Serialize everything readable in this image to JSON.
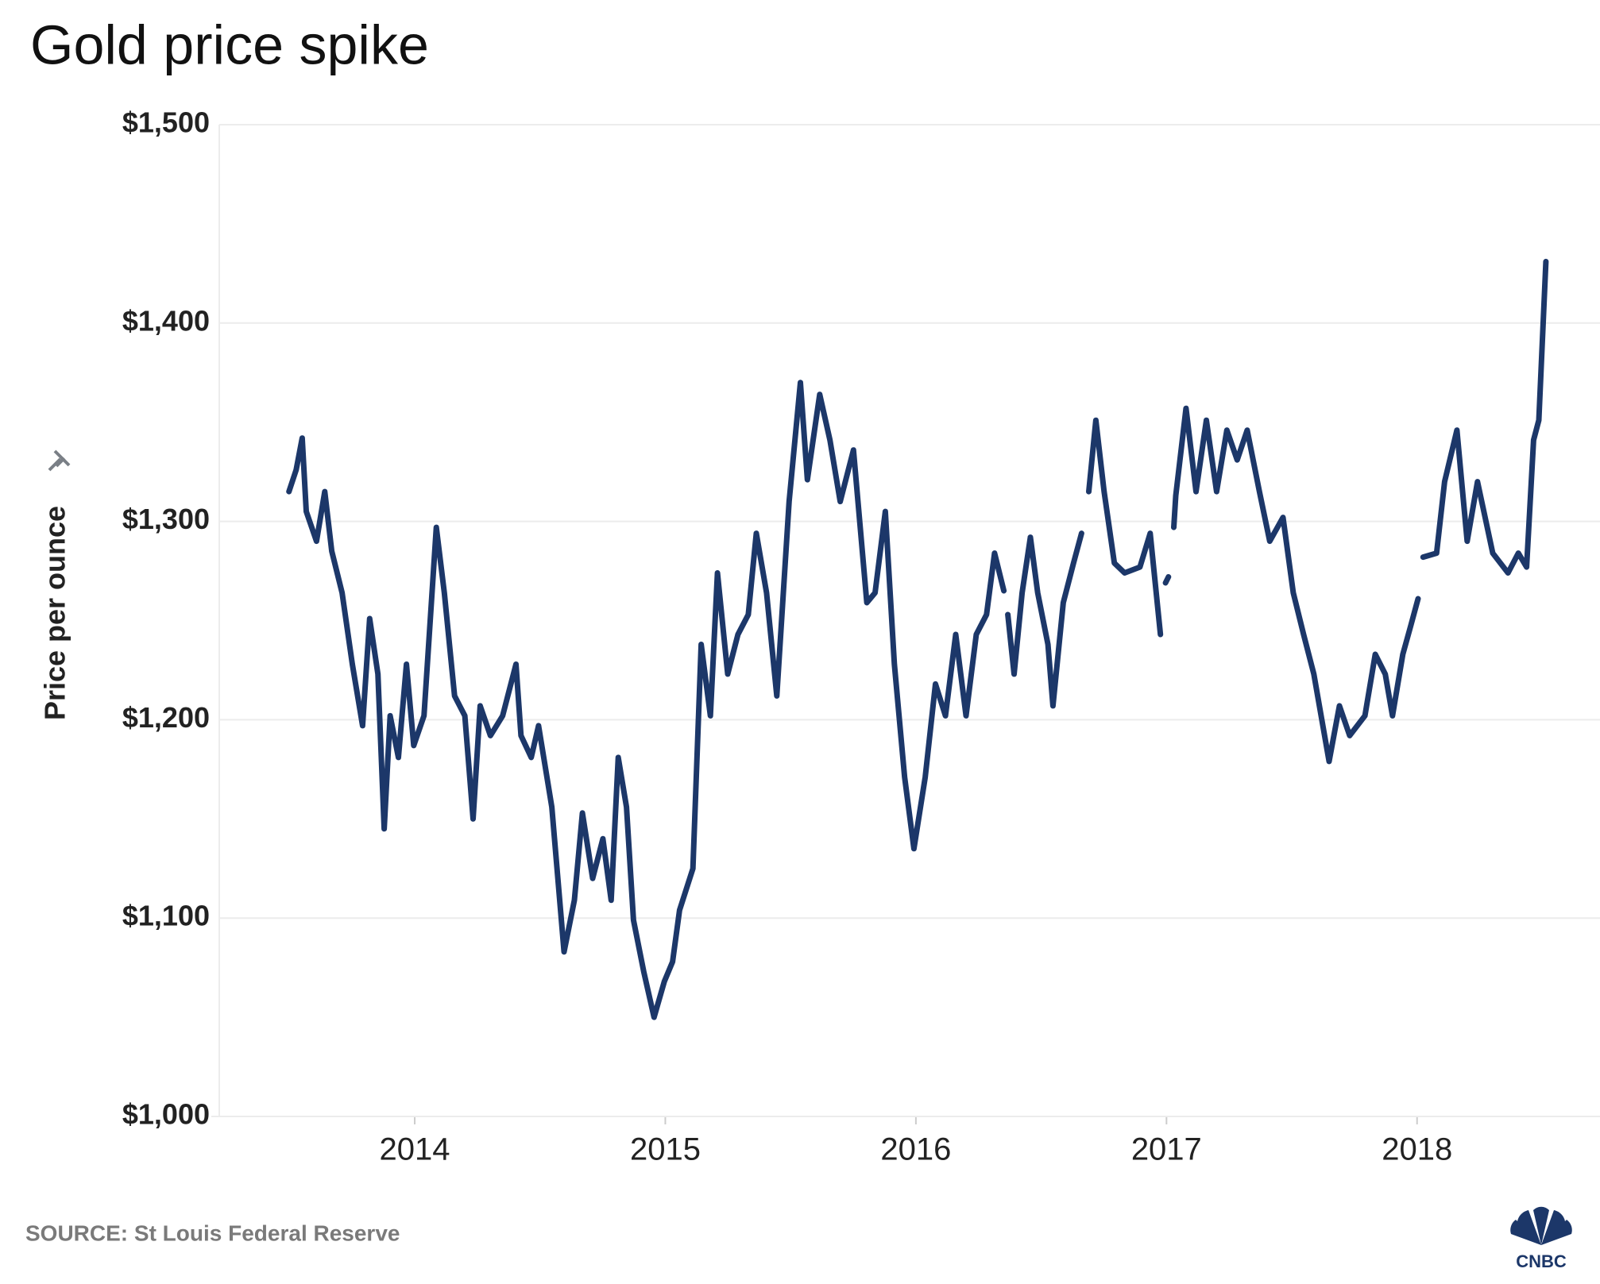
{
  "chart_data": {
    "type": "line",
    "title": "Gold price spike",
    "y_label": "Price per ounce",
    "source": "SOURCE: St Louis Federal Reserve",
    "logo": "CNBC",
    "xlim": [
      2013.22,
      2018.73
    ],
    "xticks": [
      2014,
      2015,
      2016,
      2017,
      2018
    ],
    "ylim": [
      1000,
      1500
    ],
    "yticks": [
      {
        "value": 1000,
        "label": "$1,000"
      },
      {
        "value": 1100,
        "label": "$1,100"
      },
      {
        "value": 1200,
        "label": "$1,200"
      },
      {
        "value": 1300,
        "label": "$1,300"
      },
      {
        "value": 1400,
        "label": "$1,400"
      },
      {
        "value": 1500,
        "label": "$1,500"
      }
    ],
    "grid": true,
    "color": "#1c3769",
    "x": [
      2013.498,
      2013.527,
      2013.551,
      2013.567,
      2013.608,
      2013.641,
      2013.669,
      2013.71,
      2013.751,
      2013.792,
      2013.82,
      2013.853,
      2013.878,
      2013.902,
      2013.935,
      2013.967,
      2013.996,
      2014.037,
      2014.086,
      2014.118,
      2014.159,
      2014.2,
      2014.233,
      2014.261,
      2014.302,
      2014.351,
      2014.404,
      2014.424,
      2014.465,
      2014.494,
      2014.547,
      2014.596,
      2014.637,
      2014.669,
      2014.71,
      2014.751,
      2014.784,
      2014.812,
      2014.845,
      2014.873,
      2014.914,
      2014.955,
      2014.996,
      2015.029,
      2015.057,
      2015.11,
      2015.143,
      2015.18,
      2015.208,
      2015.249,
      2015.29,
      2015.331,
      2015.363,
      2015.404,
      2015.445,
      2015.494,
      2015.539,
      2015.567,
      2015.616,
      2015.657,
      2015.698,
      2015.751,
      2015.804,
      2015.837,
      2015.878,
      2015.914,
      2015.955,
      2015.992,
      2016.037,
      2016.078,
      2016.118,
      2016.159,
      2016.2,
      2016.241,
      2016.282,
      2016.314,
      2016.351,
      2016.359,
      2016.367,
      2016.392,
      2016.424,
      2016.457,
      2016.486,
      2016.527,
      2016.547,
      2016.588,
      2016.629,
      2016.661,
      2016.682,
      2016.69,
      2016.718,
      2016.751,
      2016.792,
      2016.833,
      2016.894,
      2016.935,
      2016.976,
      2016.984,
      2016.996,
      2017.008,
      2017.016,
      2017.029,
      2017.037,
      2017.078,
      2017.118,
      2017.159,
      2017.2,
      2017.241,
      2017.282,
      2017.322,
      2017.371,
      2017.412,
      2017.465,
      2017.506,
      2017.547,
      2017.588,
      2017.649,
      2017.69,
      2017.731,
      2017.792,
      2017.833,
      2017.873,
      2017.902,
      2017.943,
      2017.976,
      2018.004,
      2018.012,
      2018.024,
      2018.078,
      2018.11,
      2018.159,
      2018.2,
      2018.241,
      2018.302,
      2018.363,
      2018.404,
      2018.437,
      2018.465,
      2018.486,
      2018.514
    ],
    "values": [
      1315,
      1326,
      1342,
      1305,
      1290,
      1315,
      1285,
      1264,
      1228,
      1197,
      1251,
      1223,
      1145,
      1202,
      1181,
      1228,
      1187,
      1202,
      1297,
      1264,
      1212,
      1202,
      1150,
      1207,
      1192,
      1202,
      1228,
      1192,
      1181,
      1197,
      1156,
      1083,
      1109,
      1153,
      1120,
      1140,
      1109,
      1181,
      1156,
      1099,
      1073,
      1050,
      1068,
      1078,
      1104,
      1125,
      1238,
      1202,
      1274,
      1223,
      1243,
      1253,
      1294,
      1264,
      1212,
      1310,
      1370,
      1321,
      1364,
      1341,
      1310,
      1336,
      1259,
      1264,
      1305,
      1228,
      1171,
      1135,
      1171,
      1218,
      1202,
      1243,
      1202,
      1243,
      1253,
      1284,
      1265,
      null,
      1253,
      1223,
      1264,
      1292,
      1264,
      1238,
      1207,
      1259,
      1279,
      1294,
      null,
      1315,
      1351,
      1315,
      1279,
      1274,
      1277,
      1294,
      1243,
      null,
      1269,
      1272,
      null,
      1297,
      1313,
      1357,
      1315,
      1351,
      1315,
      1346,
      1331,
      1346,
      1315,
      1290,
      1302,
      1264,
      1243,
      1223,
      1179,
      1207,
      1192,
      1202,
      1233,
      1223,
      1202,
      1233,
      1248,
      1261,
      null,
      1282,
      1284,
      1320,
      1346,
      1290,
      1320,
      1284,
      1274,
      1284,
      1277,
      1341,
      1351,
      1431
    ]
  }
}
